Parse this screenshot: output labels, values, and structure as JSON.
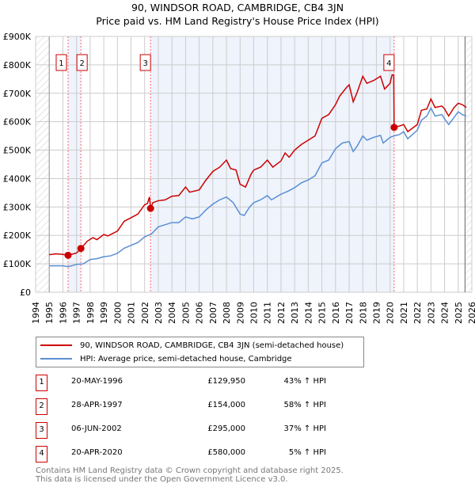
{
  "title": "90, WINDSOR ROAD, CAMBRIDGE, CB4 3JN",
  "subtitle": "Price paid vs. HM Land Registry's House Price Index (HPI)",
  "chart_data": {
    "type": "line",
    "ylim": [
      0,
      900000
    ],
    "xlim": [
      1994,
      2026
    ],
    "yticks": [
      {
        "v": 0,
        "label": "£0"
      },
      {
        "v": 100000,
        "label": "£100K"
      },
      {
        "v": 200000,
        "label": "£200K"
      },
      {
        "v": 300000,
        "label": "£300K"
      },
      {
        "v": 400000,
        "label": "£400K"
      },
      {
        "v": 500000,
        "label": "£500K"
      },
      {
        "v": 600000,
        "label": "£600K"
      },
      {
        "v": 700000,
        "label": "£700K"
      },
      {
        "v": 800000,
        "label": "£800K"
      },
      {
        "v": 900000,
        "label": "£900K"
      }
    ],
    "xticks": [
      "1994",
      "1995",
      "1996",
      "1997",
      "1998",
      "1999",
      "2000",
      "2001",
      "2002",
      "2003",
      "2004",
      "2005",
      "2006",
      "2007",
      "2008",
      "2009",
      "2010",
      "2011",
      "2012",
      "2013",
      "2014",
      "2015",
      "2016",
      "2017",
      "2018",
      "2019",
      "2020",
      "2021",
      "2022",
      "2023",
      "2024",
      "2025",
      "2026"
    ],
    "series": [
      {
        "name": "90, WINDSOR ROAD, CAMBRIDGE, CB4 3JN (semi-detached house)",
        "color": "#cc0000",
        "points": [
          [
            1995,
            132
          ],
          [
            1995.5,
            135
          ],
          [
            1996,
            133
          ],
          [
            1996.38,
            130
          ],
          [
            1997,
            138
          ],
          [
            1997.32,
            154
          ],
          [
            1997.8,
            180
          ],
          [
            1998.2,
            192
          ],
          [
            1998.5,
            185
          ],
          [
            1999,
            203
          ],
          [
            1999.3,
            198
          ],
          [
            2000,
            215
          ],
          [
            2000.5,
            250
          ],
          [
            2001,
            262
          ],
          [
            2001.5,
            275
          ],
          [
            2002,
            308
          ],
          [
            2002.2,
            312
          ],
          [
            2002.35,
            335
          ],
          [
            2002.43,
            295
          ],
          [
            2002.6,
            315
          ],
          [
            2003,
            322
          ],
          [
            2003.5,
            325
          ],
          [
            2004,
            338
          ],
          [
            2004.5,
            340
          ],
          [
            2005,
            370
          ],
          [
            2005.3,
            352
          ],
          [
            2006,
            360
          ],
          [
            2006.5,
            395
          ],
          [
            2007,
            425
          ],
          [
            2007.5,
            440
          ],
          [
            2008,
            465
          ],
          [
            2008.3,
            435
          ],
          [
            2008.7,
            430
          ],
          [
            2009,
            380
          ],
          [
            2009.4,
            370
          ],
          [
            2009.8,
            415
          ],
          [
            2010,
            430
          ],
          [
            2010.5,
            440
          ],
          [
            2011,
            465
          ],
          [
            2011.4,
            440
          ],
          [
            2012,
            462
          ],
          [
            2012.3,
            490
          ],
          [
            2012.6,
            475
          ],
          [
            2013,
            500
          ],
          [
            2013.5,
            520
          ],
          [
            2014,
            535
          ],
          [
            2014.5,
            550
          ],
          [
            2015,
            612
          ],
          [
            2015.5,
            625
          ],
          [
            2016,
            660
          ],
          [
            2016.3,
            690
          ],
          [
            2016.8,
            720
          ],
          [
            2017,
            730
          ],
          [
            2017.3,
            670
          ],
          [
            2017.6,
            705
          ],
          [
            2018,
            760
          ],
          [
            2018.3,
            735
          ],
          [
            2018.8,
            745
          ],
          [
            2019.3,
            760
          ],
          [
            2019.6,
            715
          ],
          [
            2020,
            735
          ],
          [
            2020.15,
            765
          ],
          [
            2020.27,
            765
          ],
          [
            2020.3,
            580
          ],
          [
            2020.7,
            585
          ],
          [
            2021,
            590
          ],
          [
            2021.3,
            565
          ],
          [
            2022,
            590
          ],
          [
            2022.3,
            640
          ],
          [
            2022.7,
            645
          ],
          [
            2023,
            680
          ],
          [
            2023.3,
            650
          ],
          [
            2023.8,
            655
          ],
          [
            2024,
            645
          ],
          [
            2024.3,
            620
          ],
          [
            2024.7,
            650
          ],
          [
            2025,
            665
          ],
          [
            2025.3,
            660
          ],
          [
            2025.6,
            650
          ]
        ]
      },
      {
        "name": "HPI: Average price, semi-detached house, Cambridge",
        "color": "#5b8fd4",
        "points": [
          [
            1995,
            93
          ],
          [
            1996,
            93
          ],
          [
            1996.4,
            90
          ],
          [
            1997,
            98
          ],
          [
            1997.5,
            100
          ],
          [
            1998,
            115
          ],
          [
            1998.5,
            118
          ],
          [
            1999,
            125
          ],
          [
            1999.5,
            128
          ],
          [
            2000,
            137
          ],
          [
            2000.5,
            155
          ],
          [
            2001,
            165
          ],
          [
            2001.5,
            175
          ],
          [
            2002,
            195
          ],
          [
            2002.5,
            205
          ],
          [
            2003,
            230
          ],
          [
            2004,
            245
          ],
          [
            2004.5,
            245
          ],
          [
            2005,
            265
          ],
          [
            2005.5,
            258
          ],
          [
            2006,
            265
          ],
          [
            2006.5,
            290
          ],
          [
            2007,
            310
          ],
          [
            2007.5,
            325
          ],
          [
            2008,
            335
          ],
          [
            2008.5,
            315
          ],
          [
            2009,
            275
          ],
          [
            2009.3,
            270
          ],
          [
            2009.7,
            300
          ],
          [
            2010,
            315
          ],
          [
            2010.5,
            325
          ],
          [
            2011,
            340
          ],
          [
            2011.3,
            325
          ],
          [
            2012,
            345
          ],
          [
            2012.5,
            355
          ],
          [
            2013,
            368
          ],
          [
            2013.5,
            385
          ],
          [
            2014,
            395
          ],
          [
            2014.5,
            410
          ],
          [
            2015,
            455
          ],
          [
            2015.5,
            465
          ],
          [
            2016,
            505
          ],
          [
            2016.5,
            525
          ],
          [
            2017,
            530
          ],
          [
            2017.3,
            495
          ],
          [
            2017.6,
            515
          ],
          [
            2018,
            550
          ],
          [
            2018.3,
            535
          ],
          [
            2018.8,
            545
          ],
          [
            2019.3,
            552
          ],
          [
            2019.5,
            525
          ],
          [
            2020,
            545
          ],
          [
            2020.3,
            550
          ],
          [
            2020.7,
            555
          ],
          [
            2021,
            565
          ],
          [
            2021.3,
            540
          ],
          [
            2022,
            570
          ],
          [
            2022.3,
            605
          ],
          [
            2022.7,
            620
          ],
          [
            2023,
            648
          ],
          [
            2023.3,
            620
          ],
          [
            2023.8,
            625
          ],
          [
            2024,
            610
          ],
          [
            2024.3,
            590
          ],
          [
            2024.7,
            615
          ],
          [
            2025,
            635
          ],
          [
            2025.3,
            625
          ],
          [
            2025.6,
            620
          ]
        ]
      }
    ],
    "sales": [
      {
        "label": "1",
        "x": 1996.38,
        "y": 129.95
      },
      {
        "label": "2",
        "x": 1997.32,
        "y": 154
      },
      {
        "label": "3",
        "x": 2002.43,
        "y": 295
      },
      {
        "label": "4",
        "x": 2020.3,
        "y": 580
      }
    ],
    "shaded": [
      [
        1996.38,
        1997.32
      ],
      [
        2002.43,
        2020.3
      ]
    ],
    "hatched": [
      [
        1994,
        1995
      ],
      [
        2025.5,
        2026
      ]
    ]
  },
  "legend": {
    "property": "90, WINDSOR ROAD, CAMBRIDGE, CB4 3JN (semi-detached house)",
    "hpi": "HPI: Average price, semi-detached house, Cambridge"
  },
  "table": [
    {
      "num": "1",
      "date": "20-MAY-1996",
      "price": "£129,950",
      "pct": "43% ↑ HPI"
    },
    {
      "num": "2",
      "date": "28-APR-1997",
      "price": "£154,000",
      "pct": "58% ↑ HPI"
    },
    {
      "num": "3",
      "date": "06-JUN-2002",
      "price": "£295,000",
      "pct": "37% ↑ HPI"
    },
    {
      "num": "4",
      "date": "20-APR-2020",
      "price": "£580,000",
      "pct": "5% ↑ HPI"
    }
  ],
  "footer": [
    "Contains HM Land Registry data © Crown copyright and database right 2025.",
    "This data is licensed under the Open Government Licence v3.0."
  ]
}
